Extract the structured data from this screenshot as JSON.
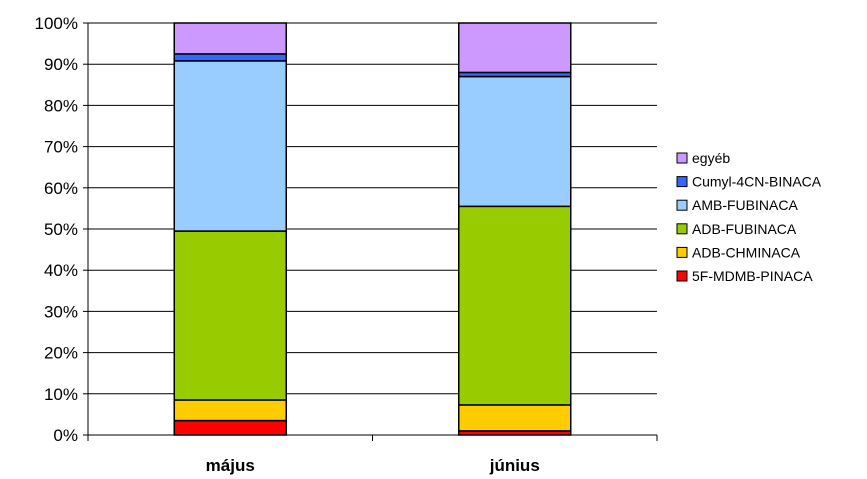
{
  "chart_data": {
    "type": "bar",
    "stacked": true,
    "percent": true,
    "categories": [
      "május",
      "június"
    ],
    "series": [
      {
        "name": "5F-MDMB-PINACA",
        "color": "#FF0000",
        "values": [
          3.5,
          1
        ]
      },
      {
        "name": "ADB-CHMINACA",
        "color": "#FFCC00",
        "values": [
          5,
          6.3
        ]
      },
      {
        "name": "ADB-FUBINACA",
        "color": "#99CC00",
        "values": [
          41,
          48.2
        ]
      },
      {
        "name": "AMB-FUBINACA",
        "color": "#99CCFF",
        "values": [
          41.3,
          31.5
        ]
      },
      {
        "name": "Cumyl-4CN-BINACA",
        "color": "#3366FF",
        "values": [
          1.7,
          1
        ]
      },
      {
        "name": "egyéb",
        "color": "#CC99FF",
        "values": [
          7.5,
          12
        ]
      }
    ],
    "ylim": [
      0,
      100
    ],
    "yticks": [
      "0%",
      "10%",
      "20%",
      "30%",
      "40%",
      "50%",
      "60%",
      "70%",
      "80%",
      "90%",
      "100%"
    ],
    "grid": true,
    "legend": "right"
  }
}
